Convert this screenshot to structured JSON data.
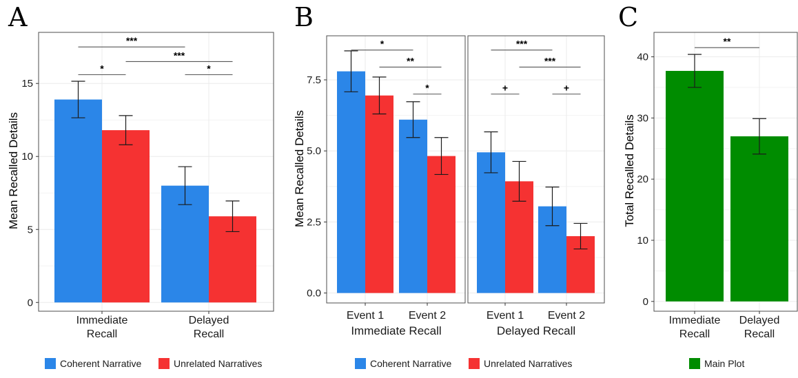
{
  "panels": [
    {
      "letter": "A",
      "ylabel": "Mean Recalled Details",
      "chart_data": {
        "type": "bar",
        "categories": [
          "Immediate\nRecall",
          "Delayed\nRecall"
        ],
        "series": [
          {
            "name": "Coherent Narrative",
            "values": [
              13.9,
              8.0
            ],
            "errors": [
              1.25,
              1.3
            ]
          },
          {
            "name": "Unrelated Narratives",
            "values": [
              11.8,
              5.9
            ],
            "errors": [
              1.0,
              1.05
            ]
          }
        ],
        "ylim": [
          -0.6,
          18.5
        ],
        "yticks": [
          0,
          5,
          10,
          15
        ],
        "ytick_labels": [
          "0",
          "5",
          "10",
          "15"
        ],
        "significance": [
          {
            "label": "***",
            "from": [
              0,
              0
            ],
            "to": [
              1,
              0
            ],
            "y": 17.5
          },
          {
            "label": "***",
            "from": [
              0,
              1
            ],
            "to": [
              1,
              1
            ],
            "y": 16.5
          },
          {
            "label": "*",
            "from": [
              0,
              0
            ],
            "to": [
              0,
              1
            ],
            "y": 15.6
          },
          {
            "label": "*",
            "from": [
              1,
              0
            ],
            "to": [
              1,
              1
            ],
            "y": 15.6
          }
        ]
      }
    },
    {
      "letter": "B",
      "ylabel": "Mean Recalled Details",
      "facets": [
        {
          "title": "Immediate Recall",
          "chart_data": {
            "type": "bar",
            "categories": [
              "Event 1",
              "Event 2"
            ],
            "series": [
              {
                "name": "Coherent Narrative",
                "values": [
                  7.8,
                  6.1
                ],
                "errors": [
                  0.72,
                  0.63
                ]
              },
              {
                "name": "Unrelated Narratives",
                "values": [
                  6.95,
                  4.82
                ],
                "errors": [
                  0.65,
                  0.65
                ]
              }
            ],
            "significance": [
              {
                "label": "*",
                "from": [
                  0,
                  0
                ],
                "to": [
                  1,
                  0
                ],
                "y": 8.55
              },
              {
                "label": "**",
                "from": [
                  0,
                  1
                ],
                "to": [
                  1,
                  1
                ],
                "y": 7.95
              },
              {
                "label": "*",
                "from": [
                  1,
                  0
                ],
                "to": [
                  1,
                  1
                ],
                "y": 7.0
              }
            ]
          }
        },
        {
          "title": "Delayed Recall",
          "chart_data": {
            "type": "bar",
            "categories": [
              "Event 1",
              "Event 2"
            ],
            "series": [
              {
                "name": "Coherent Narrative",
                "values": [
                  4.95,
                  3.05
                ],
                "errors": [
                  0.72,
                  0.68
                ]
              },
              {
                "name": "Unrelated Narratives",
                "values": [
                  3.93,
                  2.0
                ],
                "errors": [
                  0.7,
                  0.45
                ]
              }
            ],
            "significance": [
              {
                "label": "***",
                "from": [
                  0,
                  0
                ],
                "to": [
                  1,
                  0
                ],
                "y": 8.55
              },
              {
                "label": "***",
                "from": [
                  0,
                  1
                ],
                "to": [
                  1,
                  1
                ],
                "y": 7.95
              },
              {
                "label": "+",
                "from": [
                  0,
                  0
                ],
                "to": [
                  0,
                  1
                ],
                "y": 7.0
              },
              {
                "label": "+",
                "from": [
                  1,
                  0
                ],
                "to": [
                  1,
                  1
                ],
                "y": 7.0
              }
            ]
          }
        }
      ],
      "ylim": [
        -0.35,
        9.05
      ],
      "yticks": [
        0,
        2.5,
        5,
        7.5
      ],
      "ytick_labels": [
        "0.0",
        "2.5",
        "5.0",
        "7.5"
      ]
    },
    {
      "letter": "C",
      "ylabel": "Total Recalled Details",
      "chart_data": {
        "type": "bar",
        "categories": [
          "Immediate\nRecall",
          "Delayed\nRecall"
        ],
        "series": [
          {
            "name": "Main Plot",
            "values": [
              37.7,
              27.0
            ],
            "errors": [
              2.7,
              2.9
            ]
          }
        ],
        "ylim": [
          -1.6,
          44.0
        ],
        "yticks": [
          0,
          10,
          20,
          30,
          40
        ],
        "ytick_labels": [
          "0",
          "10",
          "20",
          "30",
          "40"
        ],
        "significance": [
          {
            "label": "**",
            "from": [
              0,
              0
            ],
            "to": [
              1,
              0
            ],
            "y": 41.5
          }
        ]
      }
    }
  ],
  "legends": [
    {
      "items": [
        {
          "label": "Coherent Narrative",
          "color": "#2B86E8"
        },
        {
          "label": "Unrelated Narratives",
          "color": "#F53232"
        }
      ]
    },
    {
      "items": [
        {
          "label": "Coherent Narrative",
          "color": "#2B86E8"
        },
        {
          "label": "Unrelated Narratives",
          "color": "#F53232"
        }
      ]
    },
    {
      "items": [
        {
          "label": "Main Plot",
          "color": "#008C00"
        }
      ]
    }
  ],
  "colors": {
    "coherent": "#2B86E8",
    "unrelated": "#F53232",
    "main_plot": "#008C00"
  }
}
